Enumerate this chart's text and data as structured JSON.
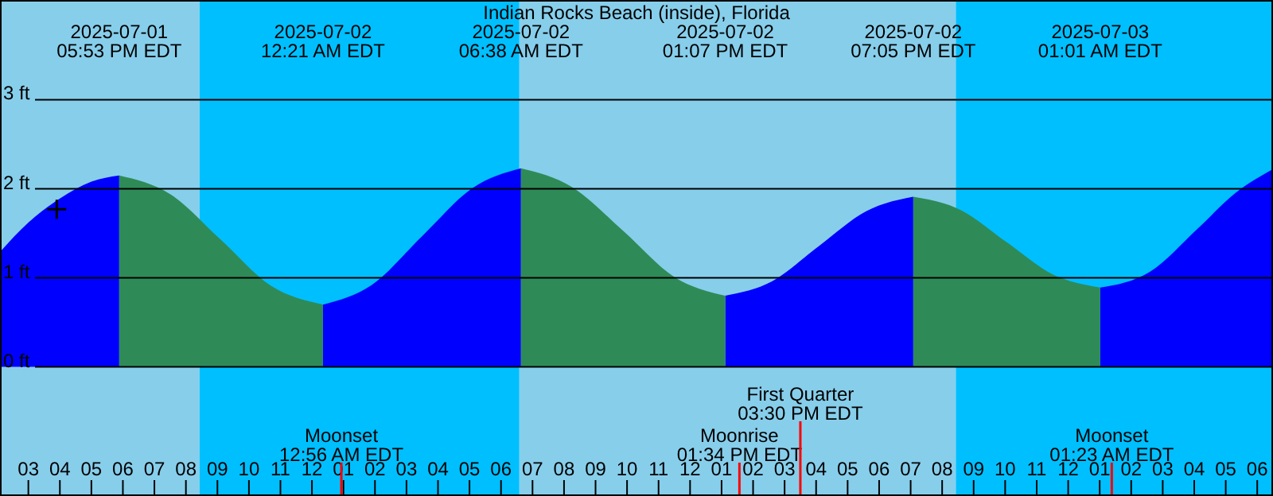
{
  "chart_data": {
    "type": "area",
    "title": "Indian Rocks Beach (inside), Florida",
    "xlim": [
      "2025-07-01T14:06",
      "2025-07-03T06:30"
    ],
    "ylim": [
      -1.45,
      4.12
    ],
    "xticks": [
      {
        "value": "2025-07-01T15:00",
        "label": "03"
      },
      {
        "value": "2025-07-01T16:00",
        "label": "04"
      },
      {
        "value": "2025-07-01T17:00",
        "label": "05"
      },
      {
        "value": "2025-07-01T18:00",
        "label": "06"
      },
      {
        "value": "2025-07-01T19:00",
        "label": "07"
      },
      {
        "value": "2025-07-01T20:00",
        "label": "08"
      },
      {
        "value": "2025-07-01T21:00",
        "label": "09"
      },
      {
        "value": "2025-07-01T22:00",
        "label": "10"
      },
      {
        "value": "2025-07-01T23:00",
        "label": "11"
      },
      {
        "value": "2025-07-02T00:00",
        "label": "12"
      },
      {
        "value": "2025-07-02T01:00",
        "label": "01"
      },
      {
        "value": "2025-07-02T02:00",
        "label": "02"
      },
      {
        "value": "2025-07-02T03:00",
        "label": "03"
      },
      {
        "value": "2025-07-02T04:00",
        "label": "04"
      },
      {
        "value": "2025-07-02T05:00",
        "label": "05"
      },
      {
        "value": "2025-07-02T06:00",
        "label": "06"
      },
      {
        "value": "2025-07-02T07:00",
        "label": "07"
      },
      {
        "value": "2025-07-02T08:00",
        "label": "08"
      },
      {
        "value": "2025-07-02T09:00",
        "label": "09"
      },
      {
        "value": "2025-07-02T10:00",
        "label": "10"
      },
      {
        "value": "2025-07-02T11:00",
        "label": "11"
      },
      {
        "value": "2025-07-02T12:00",
        "label": "12"
      },
      {
        "value": "2025-07-02T13:00",
        "label": "01"
      },
      {
        "value": "2025-07-02T14:00",
        "label": "02"
      },
      {
        "value": "2025-07-02T15:00",
        "label": "03"
      },
      {
        "value": "2025-07-02T16:00",
        "label": "04"
      },
      {
        "value": "2025-07-02T17:00",
        "label": "05"
      },
      {
        "value": "2025-07-02T18:00",
        "label": "06"
      },
      {
        "value": "2025-07-02T19:00",
        "label": "07"
      },
      {
        "value": "2025-07-02T20:00",
        "label": "08"
      },
      {
        "value": "2025-07-02T21:00",
        "label": "09"
      },
      {
        "value": "2025-07-02T22:00",
        "label": "10"
      },
      {
        "value": "2025-07-02T23:00",
        "label": "11"
      },
      {
        "value": "2025-07-03T00:00",
        "label": "12"
      },
      {
        "value": "2025-07-03T01:00",
        "label": "01"
      },
      {
        "value": "2025-07-03T02:00",
        "label": "02"
      },
      {
        "value": "2025-07-03T03:00",
        "label": "03"
      },
      {
        "value": "2025-07-03T04:00",
        "label": "04"
      },
      {
        "value": "2025-07-03T05:00",
        "label": "05"
      },
      {
        "value": "2025-07-03T06:00",
        "label": "06"
      }
    ],
    "yticks": [
      {
        "value": 0,
        "label": "0 ft"
      },
      {
        "value": 1,
        "label": "1 ft"
      },
      {
        "value": 2,
        "label": "2 ft"
      },
      {
        "value": 3,
        "label": "3 ft"
      }
    ],
    "grid": "y",
    "bands": [
      {
        "axis": "x",
        "from": "2025-07-01T14:06",
        "to": "2025-07-01T20:26",
        "color": "#87ceeb"
      },
      {
        "axis": "x",
        "from": "2025-07-01T20:26",
        "to": "2025-07-02T06:35",
        "color": "#00bfff"
      },
      {
        "axis": "x",
        "from": "2025-07-02T06:35",
        "to": "2025-07-02T20:26",
        "color": "#87ceeb"
      },
      {
        "axis": "x",
        "from": "2025-07-02T20:26",
        "to": "2025-07-03T06:30",
        "color": "#00bfff"
      }
    ],
    "ref_lines": [
      {
        "axis": "x",
        "value": "2025-07-02T00:56",
        "label": "Moonset\n12:56 AM EDT",
        "color": "#ff0000"
      },
      {
        "axis": "x",
        "value": "2025-07-02T13:34",
        "label": "Moonrise\n01:34 PM EDT",
        "color": "#ff0000"
      },
      {
        "axis": "x",
        "value": "2025-07-02T15:30",
        "label": "First Quarter\n03:30 PM EDT",
        "color": "#ff0000"
      },
      {
        "axis": "x",
        "value": "2025-07-03T01:23",
        "label": "Moonset\n01:23 AM EDT",
        "color": "#ff0000"
      }
    ],
    "series": [
      {
        "color": "#0000ff",
        "x": [
          "2025-07-01T14:06",
          "2025-07-01T15:00",
          "2025-07-01T16:00",
          "2025-07-01T17:00",
          "2025-07-01T17:53",
          "2025-07-01T21:00",
          "2025-07-02T00:21",
          "2025-07-02T01:54",
          "2025-07-02T03:30",
          "2025-07-02T05:06",
          "2025-07-02T06:38",
          "2025-07-02T10:00",
          "2025-07-02T13:07",
          "2025-07-02T14:36",
          "2025-07-02T16:06",
          "2025-07-02T17:36",
          "2025-07-02T19:05",
          "2025-07-02T22:00",
          "2025-07-03T01:01",
          "2025-07-03T02:36",
          "2025-07-03T04:06",
          "2025-07-03T05:18",
          "2025-07-03T06:30"
        ],
        "values": [
          1.29,
          1.62,
          1.89,
          2.08,
          2.15,
          null,
          0.7,
          0.92,
          1.47,
          2.01,
          2.23,
          null,
          0.8,
          0.96,
          1.36,
          1.75,
          1.91,
          null,
          0.89,
          1.07,
          1.55,
          1.95,
          2.22
        ]
      },
      {
        "color": "#2e8b57",
        "x": [
          "2025-07-01T17:53",
          "2025-07-01T19:30",
          "2025-07-01T21:06",
          "2025-07-01T22:42",
          "2025-07-02T00:21",
          "2025-07-02T03:30",
          "2025-07-02T06:38",
          "2025-07-02T08:15",
          "2025-07-02T09:54",
          "2025-07-02T11:30",
          "2025-07-02T13:07",
          "2025-07-02T16:06",
          "2025-07-02T19:05",
          "2025-07-02T20:36",
          "2025-07-02T22:03",
          "2025-07-02T23:30",
          "2025-07-03T01:01"
        ],
        "values": [
          2.15,
          1.94,
          1.43,
          0.91,
          0.7,
          null,
          2.23,
          2.02,
          1.52,
          1.01,
          0.8,
          null,
          1.91,
          1.76,
          1.4,
          1.04,
          0.89
        ]
      },
      {
        "type": "scatter",
        "color": "#000000",
        "marker": "cross",
        "x": [
          "2025-07-01T15:54"
        ],
        "values": [
          1.77
        ]
      }
    ],
    "annotations": [
      "2025-07-01\n05:53 PM EDT",
      "2025-07-02\n12:21 AM EDT",
      "2025-07-02\n06:38 AM EDT",
      "2025-07-02\n01:07 PM EDT",
      "2025-07-02\n07:05 PM EDT",
      "2025-07-03\n01:01 AM EDT"
    ]
  }
}
